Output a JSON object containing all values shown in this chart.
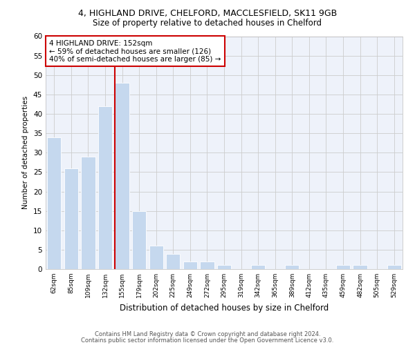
{
  "title1": "4, HIGHLAND DRIVE, CHELFORD, MACCLESFIELD, SK11 9GB",
  "title2": "Size of property relative to detached houses in Chelford",
  "xlabel": "Distribution of detached houses by size in Chelford",
  "ylabel": "Number of detached properties",
  "bar_labels": [
    "62sqm",
    "85sqm",
    "109sqm",
    "132sqm",
    "155sqm",
    "179sqm",
    "202sqm",
    "225sqm",
    "249sqm",
    "272sqm",
    "295sqm",
    "319sqm",
    "342sqm",
    "365sqm",
    "389sqm",
    "412sqm",
    "435sqm",
    "459sqm",
    "482sqm",
    "505sqm",
    "529sqm"
  ],
  "bar_values": [
    34,
    26,
    29,
    42,
    48,
    15,
    6,
    4,
    2,
    2,
    1,
    0,
    1,
    0,
    1,
    0,
    0,
    1,
    1,
    0,
    1
  ],
  "bar_color": "#c5d8ee",
  "vline_x_idx": 4,
  "vline_color": "#cc0000",
  "annotation_line1": "4 HIGHLAND DRIVE: 152sqm",
  "annotation_line2": "← 59% of detached houses are smaller (126)",
  "annotation_line3": "40% of semi-detached houses are larger (85) →",
  "annotation_box_edgecolor": "#cc0000",
  "ylim": [
    0,
    60
  ],
  "yticks": [
    0,
    5,
    10,
    15,
    20,
    25,
    30,
    35,
    40,
    45,
    50,
    55,
    60
  ],
  "grid_color": "#cccccc",
  "bg_color": "#eef2fa",
  "footer1": "Contains HM Land Registry data © Crown copyright and database right 2024.",
  "footer2": "Contains public sector information licensed under the Open Government Licence v3.0."
}
